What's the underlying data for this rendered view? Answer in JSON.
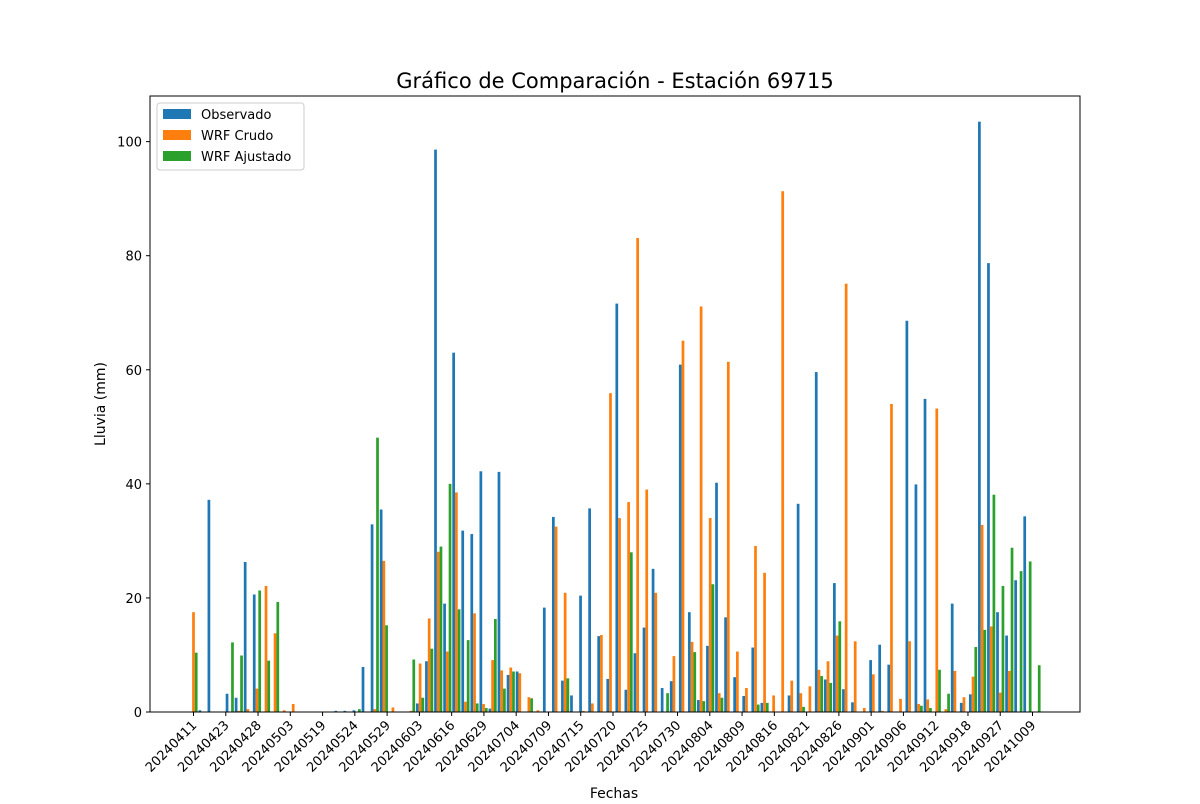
{
  "chart_data": {
    "type": "bar",
    "title": "Gráfico de Comparación - Estación 69715",
    "xlabel": "Fechas",
    "ylabel": "Lluvia (mm)",
    "ylim": [
      0,
      108
    ],
    "yticks": [
      0,
      20,
      40,
      60,
      80,
      100
    ],
    "xtick_labels": [
      "20240411",
      "20240423",
      "20240428",
      "20240503",
      "20240519",
      "20240524",
      "20240529",
      "20240603",
      "20240616",
      "20240629",
      "20240704",
      "20240709",
      "20240715",
      "20240720",
      "20240725",
      "20240730",
      "20240804",
      "20240809",
      "20240816",
      "20240821",
      "20240826",
      "20240901",
      "20240906",
      "20240912",
      "20240918",
      "20240927",
      "20241009"
    ],
    "legend_position": "upper left",
    "grid": false,
    "series": [
      {
        "name": "Observado",
        "color": "#1f77b4",
        "values": [
          0,
          0.3,
          37.2,
          0,
          3.2,
          2.5,
          26.3,
          20.6,
          0,
          0,
          0,
          0,
          0,
          0,
          0,
          0,
          0.2,
          0.2,
          0.3,
          7.9,
          32.9,
          35.5,
          0,
          0,
          0,
          1.5,
          8.9,
          98.6,
          19,
          63,
          31.8,
          31.2,
          42.2,
          0.6,
          42.1,
          6.5,
          7.1,
          0,
          0.1,
          18.3,
          34.2,
          5.5,
          2.9,
          20.4,
          35.7,
          13.3,
          5.8,
          71.6,
          3.9,
          10.3,
          14.8,
          25.1,
          4.2,
          5.4,
          60.9,
          17.5,
          2.1,
          11.6,
          40.2,
          16.6,
          6.1,
          2.8,
          11.3,
          1.6,
          0,
          0,
          2.9,
          36.5,
          0,
          59.6,
          5.7,
          22.6,
          4,
          1.7,
          0,
          9.1,
          11.8,
          8.3,
          0,
          68.6,
          39.9,
          54.9,
          0,
          0,
          19,
          1.6,
          3.1,
          103.5,
          78.7,
          17.5,
          13.4,
          23.1,
          34.3
        ]
      },
      {
        "name": "WRF Crudo",
        "color": "#ff7f0e",
        "values": [
          17.5,
          0,
          0,
          0,
          0,
          0.2,
          0.5,
          4.1,
          22.1,
          13.8,
          0.3,
          1.4,
          0,
          0,
          0,
          0,
          0,
          0,
          0,
          0,
          0.5,
          26.5,
          0.8,
          0,
          0.2,
          8.5,
          16.4,
          28.1,
          10.6,
          38.5,
          1.8,
          17.3,
          1.4,
          9.1,
          7.3,
          7.8,
          6.8,
          2.6,
          0.3,
          0,
          32.5,
          20.9,
          0,
          0.2,
          1.5,
          13.5,
          55.9,
          34,
          36.8,
          83.1,
          39,
          20.9,
          0,
          9.8,
          65.1,
          12.3,
          71.1,
          34,
          3.3,
          61.4,
          10.6,
          4.2,
          29.1,
          24.4,
          2.9,
          91.3,
          5.5,
          3.3,
          4.5,
          7.4,
          8.9,
          13.4,
          75.1,
          12.4,
          0.7,
          6.6,
          0.2,
          54,
          2.3,
          12.4,
          1.4,
          2.2,
          53.2,
          0.5,
          7.2,
          2.6,
          6.2,
          32.8,
          15,
          3.4,
          7.2,
          0,
          0
        ]
      },
      {
        "name": "WRF Ajustado",
        "color": "#2ca02c",
        "values": [
          10.4,
          0,
          0,
          0,
          12.2,
          9.9,
          0,
          21.3,
          9,
          19.3,
          0,
          0,
          0,
          0,
          0,
          0,
          0,
          0,
          0.5,
          0,
          48.1,
          15.2,
          0,
          0,
          9.2,
          2.5,
          11.1,
          29,
          40,
          18,
          12.6,
          1.5,
          0.7,
          16.3,
          4.1,
          7.1,
          0,
          2.4,
          0,
          0,
          0,
          5.9,
          0,
          0,
          0,
          0,
          0,
          0,
          28,
          0,
          0,
          0,
          3.3,
          0,
          0,
          10.5,
          1.9,
          22.4,
          2.5,
          0,
          0,
          0,
          1.3,
          1.6,
          0,
          0,
          0,
          0.9,
          0,
          6.3,
          5.1,
          15.9,
          0,
          0,
          0,
          0,
          0,
          0,
          0,
          0,
          1.1,
          0.7,
          7.4,
          3.2,
          0,
          0,
          11.4,
          14.4,
          38.1,
          22.1,
          28.8,
          24.7,
          26.4,
          8.2
        ]
      }
    ]
  }
}
